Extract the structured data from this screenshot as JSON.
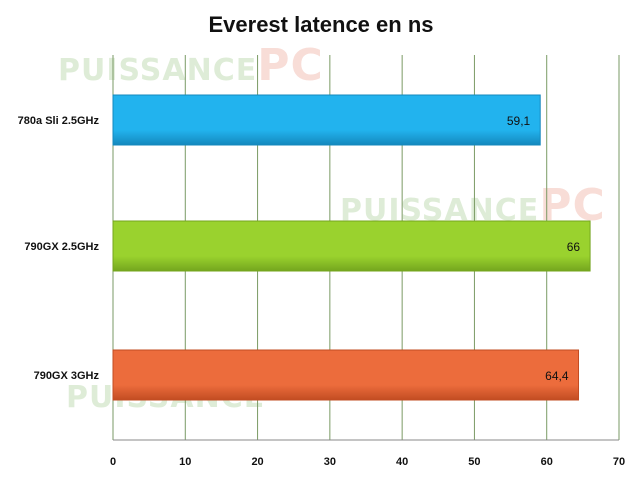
{
  "watermark": {
    "text": "PUISSANCE",
    "brand": "PC"
  },
  "chart_data": {
    "type": "bar",
    "orientation": "horizontal",
    "title": "Everest latence en ns",
    "categories": [
      "780a Sli 2.5GHz",
      "790GX 2.5GHz",
      "790GX 3GHz"
    ],
    "values": [
      59.1,
      66,
      64.4
    ],
    "data_labels": [
      "59,1",
      "66",
      "64,4"
    ],
    "xlim": [
      0,
      70
    ],
    "x_ticks": [
      0,
      10,
      20,
      30,
      40,
      50,
      60,
      70
    ],
    "grid": true,
    "legend": false,
    "colors": [
      "#22b3ee",
      "#9ad22e",
      "#ec6c3c"
    ],
    "color_dark": [
      "#1488bd",
      "#74a51e",
      "#c24c22"
    ],
    "gridline_color": "#7a9a64"
  }
}
